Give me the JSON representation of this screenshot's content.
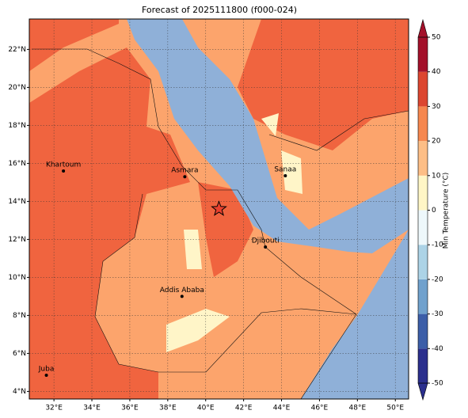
{
  "map": {
    "title": "Forecast of 2025111800 (f000-024)",
    "xlim": [
      30.7,
      50.7
    ],
    "ylim": [
      3.6,
      23.6
    ],
    "xticks": [
      {
        "value": 32,
        "label": "32°E"
      },
      {
        "value": 34,
        "label": "34°E"
      },
      {
        "value": 36,
        "label": "36°E"
      },
      {
        "value": 38,
        "label": "38°E"
      },
      {
        "value": 40,
        "label": "40°E"
      },
      {
        "value": 42,
        "label": "42°E"
      },
      {
        "value": 44,
        "label": "44°E"
      },
      {
        "value": 46,
        "label": "46°E"
      },
      {
        "value": 48,
        "label": "48°E"
      },
      {
        "value": 50,
        "label": "50°E"
      }
    ],
    "yticks": [
      {
        "value": 4,
        "label": "4°N"
      },
      {
        "value": 6,
        "label": "6°N"
      },
      {
        "value": 8,
        "label": "8°N"
      },
      {
        "value": 10,
        "label": "10°N"
      },
      {
        "value": 12,
        "label": "12°N"
      },
      {
        "value": 14,
        "label": "14°N"
      },
      {
        "value": 16,
        "label": "16°N"
      },
      {
        "value": 18,
        "label": "18°N"
      },
      {
        "value": 20,
        "label": "20°N"
      },
      {
        "value": 22,
        "label": "22°N"
      }
    ],
    "cities": [
      {
        "name": "Khartoum",
        "lon": 32.5,
        "lat": 15.6
      },
      {
        "name": "Asmara",
        "lon": 38.9,
        "lat": 15.3
      },
      {
        "name": "Sanaa",
        "lon": 44.2,
        "lat": 15.35
      },
      {
        "name": "Djibouti",
        "lon": 43.15,
        "lat": 11.6
      },
      {
        "name": "Addis Ababa",
        "lon": 38.75,
        "lat": 9.0
      },
      {
        "name": "Juba",
        "lon": 31.6,
        "lat": 4.85
      }
    ],
    "star": {
      "lon": 40.7,
      "lat": 13.6
    },
    "colorbar": {
      "label": "Min Temperature (°C)",
      "lim": [
        -50,
        50
      ],
      "ticks": [
        -50,
        -40,
        -30,
        -20,
        -10,
        0,
        10,
        20,
        30,
        40,
        50
      ],
      "colors": [
        "#2b2f8d",
        "#3c5ea8",
        "#70a1cd",
        "#acd3e6",
        "#eef8fb",
        "#fff6c6",
        "#fdbe86",
        "#f6874f",
        "#dc4630",
        "#a3102a"
      ]
    }
  }
}
